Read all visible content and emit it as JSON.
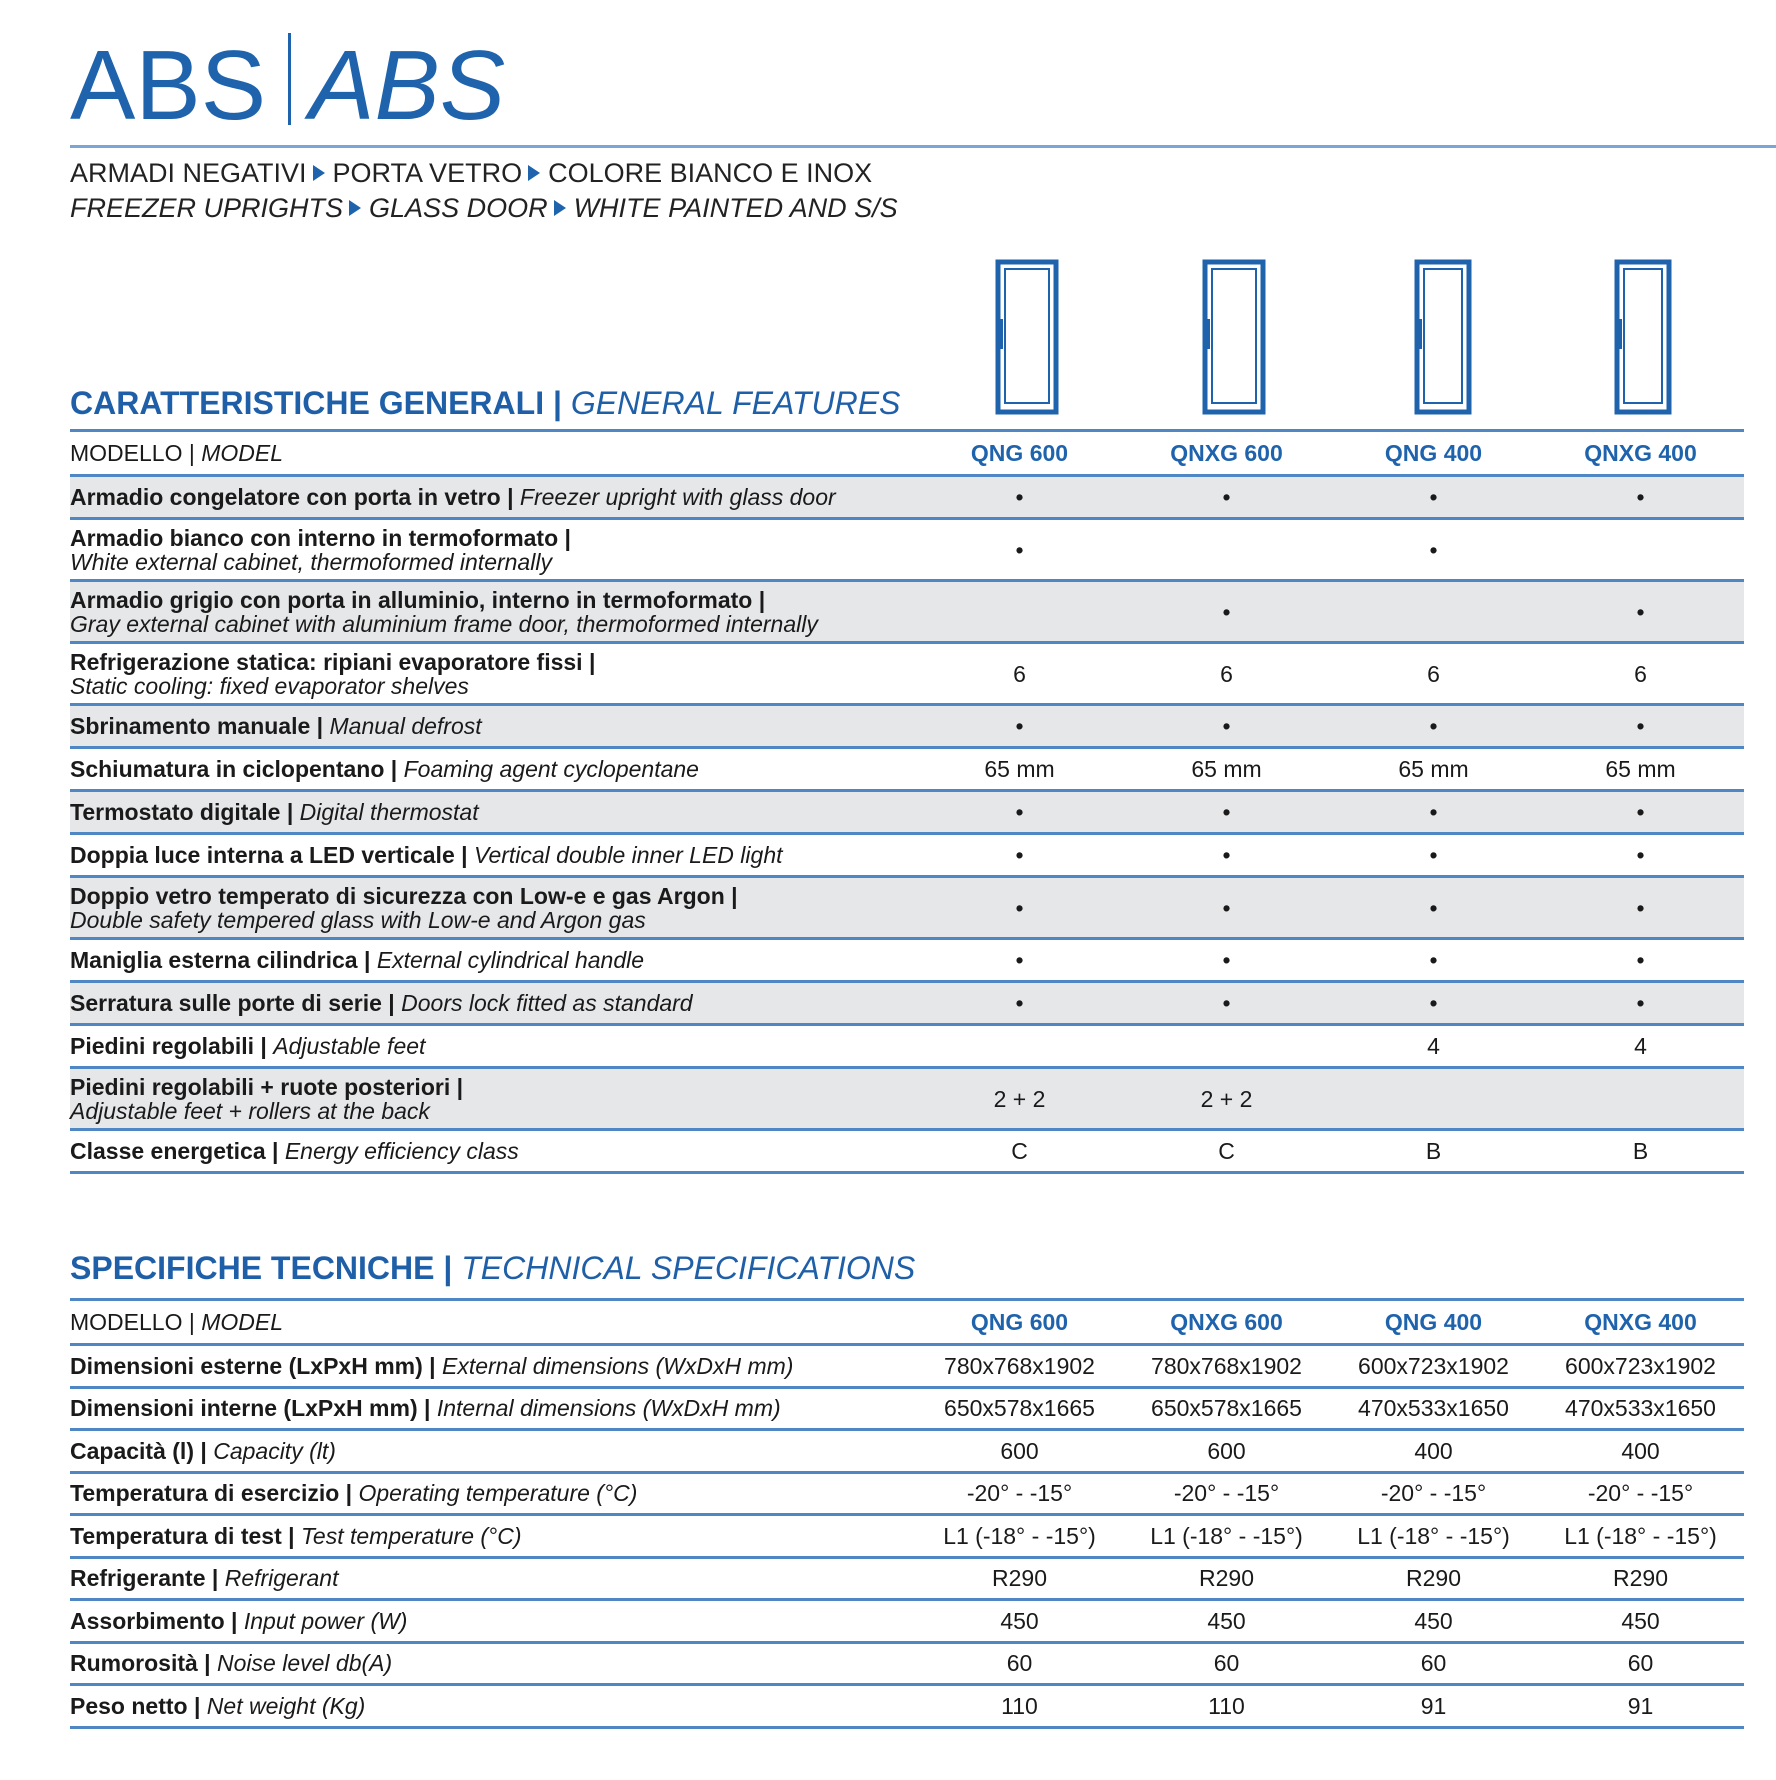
{
  "header": {
    "title": [
      "ABS",
      "ABS"
    ],
    "subtitle_it": [
      "ARMADI NEGATIVI",
      "PORTA VETRO",
      "COLORE BIANCO E INOX"
    ],
    "subtitle_en": [
      "FREEZER UPRIGHTS",
      "GLASS DOOR",
      "WHITE PAINTED AND S/S"
    ]
  },
  "sections": [
    {
      "heading_it": "CARATTERISTICHE GENERALI |",
      "heading_en": "GENERAL FEATURES",
      "model_it": "MODELLO |",
      "model_en": "MODEL",
      "models": [
        "QNG 600",
        "QNXG 600",
        "QNG 400",
        "QNXG 400"
      ],
      "rows": [
        {
          "it": "Armadio congelatore con porta in vetro |",
          "en": "Freezer upright with glass door",
          "values": [
            "•",
            "•",
            "•",
            "•"
          ]
        },
        {
          "it": "Armadio bianco con interno in termoformato |",
          "en": "White external cabinet, thermoformed internally",
          "values": [
            "•",
            null,
            "•",
            null
          ],
          "two": true
        },
        {
          "it": "Armadio grigio con porta in alluminio, interno in termoformato |",
          "en": "Gray external cabinet with aluminium frame door, thermoformed internally",
          "values": [
            null,
            "•",
            null,
            "•"
          ],
          "two": true
        },
        {
          "it": "Refrigerazione statica: ripiani evaporatore fissi |",
          "en": "Static cooling: fixed evaporator shelves",
          "values": [
            "6",
            "6",
            "6",
            "6"
          ],
          "two": true
        },
        {
          "it": "Sbrinamento manuale |",
          "en": "Manual defrost",
          "values": [
            "•",
            "•",
            "•",
            "•"
          ]
        },
        {
          "it": "Schiumatura in ciclopentano |",
          "en": "Foaming agent cyclopentane",
          "values": [
            "65 mm",
            "65 mm",
            "65 mm",
            "65 mm"
          ]
        },
        {
          "it": "Termostato digitale |",
          "en": "Digital thermostat",
          "values": [
            "•",
            "•",
            "•",
            "•"
          ]
        },
        {
          "it": "Doppia luce interna a LED verticale |",
          "en": "Vertical double inner LED light",
          "values": [
            "•",
            "•",
            "•",
            "•"
          ]
        },
        {
          "it": "Doppio vetro temperato di sicurezza con Low-e e gas Argon |",
          "en": "Double safety tempered glass with Low-e and Argon gas",
          "values": [
            "•",
            "•",
            "•",
            "•"
          ],
          "two": true
        },
        {
          "it": "Maniglia esterna cilindrica |",
          "en": "External cylindrical handle",
          "values": [
            "•",
            "•",
            "•",
            "•"
          ]
        },
        {
          "it": "Serratura sulle porte di serie |",
          "en": "Doors lock fitted as standard",
          "values": [
            "•",
            "•",
            "•",
            "•"
          ]
        },
        {
          "it": "Piedini regolabili |",
          "en": "Adjustable feet",
          "values": [
            null,
            null,
            "4",
            "4"
          ]
        },
        {
          "it": "Piedini regolabili + ruote posteriori |",
          "en": "Adjustable feet + rollers at the back",
          "values": [
            "2 + 2",
            "2 + 2",
            null,
            null
          ],
          "two": true
        },
        {
          "it": "Classe energetica |",
          "en": "Energy efficiency class",
          "values": [
            "C",
            "C",
            "B",
            "B"
          ]
        }
      ]
    },
    {
      "heading_it": "SPECIFICHE TECNICHE |",
      "heading_en": "TECHNICAL SPECIFICATIONS",
      "model_it": "MODELLO |",
      "model_en": "MODEL",
      "models": [
        "QNG 600",
        "QNXG 600",
        "QNG 400",
        "QNXG 400"
      ],
      "rows": [
        {
          "it": "Dimensioni esterne (LxPxH mm) |",
          "en": "External dimensions (WxDxH mm)",
          "values": [
            "780x768x1902",
            "780x768x1902",
            "600x723x1902",
            "600x723x1902"
          ]
        },
        {
          "it": "Dimensioni interne (LxPxH mm) |",
          "en": "Internal dimensions (WxDxH mm)",
          "values": [
            "650x578x1665",
            "650x578x1665",
            "470x533x1650",
            "470x533x1650"
          ]
        },
        {
          "it": "Capacità (l) |",
          "en": "Capacity (lt)",
          "values": [
            "600",
            "600",
            "400",
            "400"
          ]
        },
        {
          "it": "Temperatura di esercizio |",
          "en": "Operating temperature (°C)",
          "values": [
            "-20° - -15°",
            "-20° - -15°",
            "-20° - -15°",
            "-20° - -15°"
          ]
        },
        {
          "it": "Temperatura di test |",
          "en": "Test temperature (°C)",
          "values": [
            "L1 (-18° - -15°)",
            "L1 (-18° - -15°)",
            "L1 (-18° - -15°)",
            "L1 (-18° - -15°)"
          ]
        },
        {
          "it": "Refrigerante |",
          "en": "Refrigerant",
          "values": [
            "R290",
            "R290",
            "R290",
            "R290"
          ]
        },
        {
          "it": "Assorbimento |",
          "en": "Input power (W)",
          "values": [
            "450",
            "450",
            "450",
            "450"
          ]
        },
        {
          "it": "Rumorosità |",
          "en": "Noise level db(A)",
          "values": [
            "60",
            "60",
            "60",
            "60"
          ]
        },
        {
          "it": "Peso netto |",
          "en": "Net weight (Kg)",
          "values": [
            "110",
            "110",
            "91",
            "91"
          ]
        }
      ]
    }
  ]
}
